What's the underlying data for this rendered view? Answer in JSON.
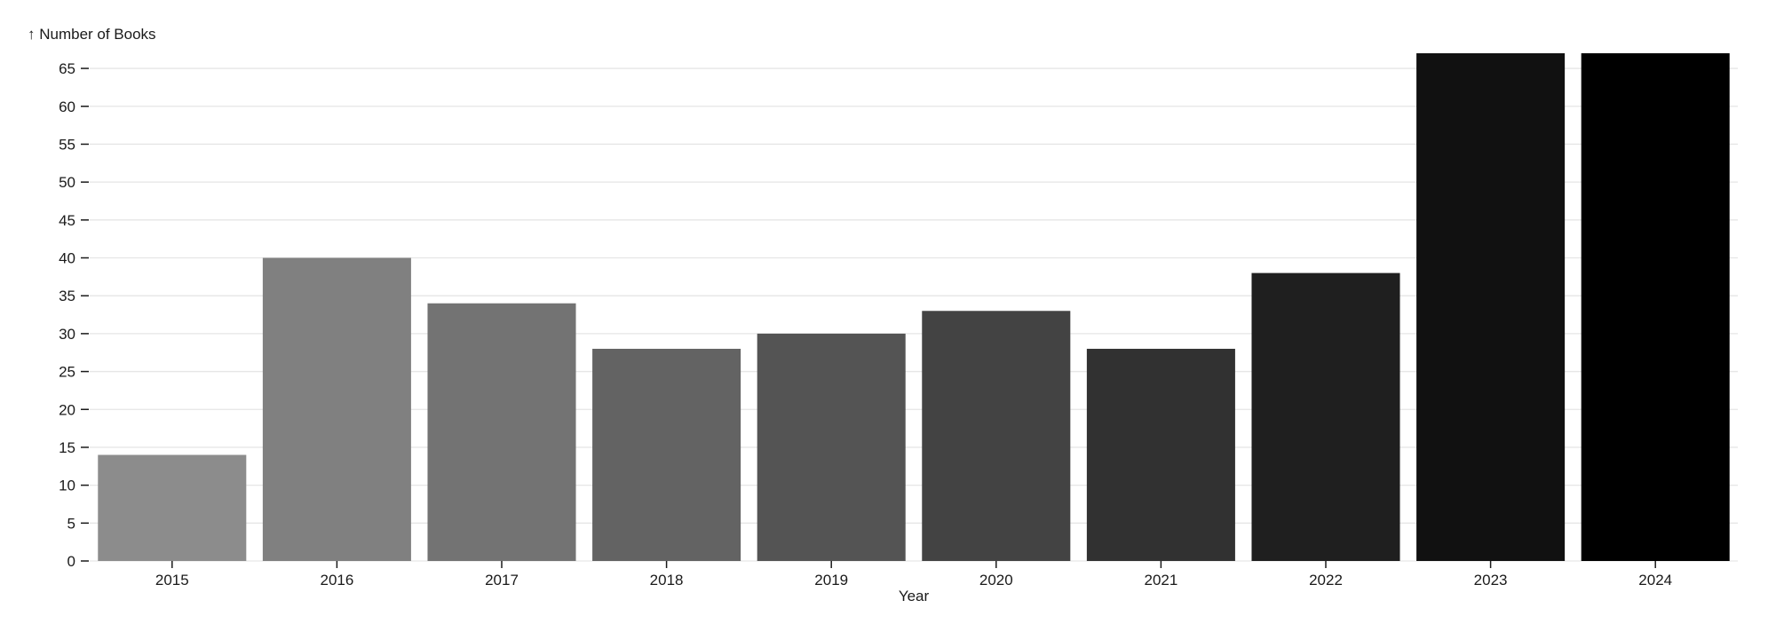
{
  "chart_data": {
    "type": "bar",
    "ylabel": "↑ Number of Books",
    "xlabel": "Year",
    "categories": [
      "2015",
      "2016",
      "2017",
      "2018",
      "2019",
      "2020",
      "2021",
      "2022",
      "2023",
      "2024"
    ],
    "values": [
      14,
      40,
      34,
      28,
      30,
      33,
      28,
      38,
      67,
      67
    ],
    "ylim": [
      0,
      67
    ],
    "yticks": [
      0,
      5,
      10,
      15,
      20,
      25,
      30,
      35,
      40,
      45,
      50,
      55,
      60,
      65
    ],
    "grid": true,
    "colors": [
      "#8c8c8c",
      "#808080",
      "#737373",
      "#636363",
      "#545454",
      "#434343",
      "#313131",
      "#1f1f1f",
      "#111111",
      "#000000"
    ]
  }
}
